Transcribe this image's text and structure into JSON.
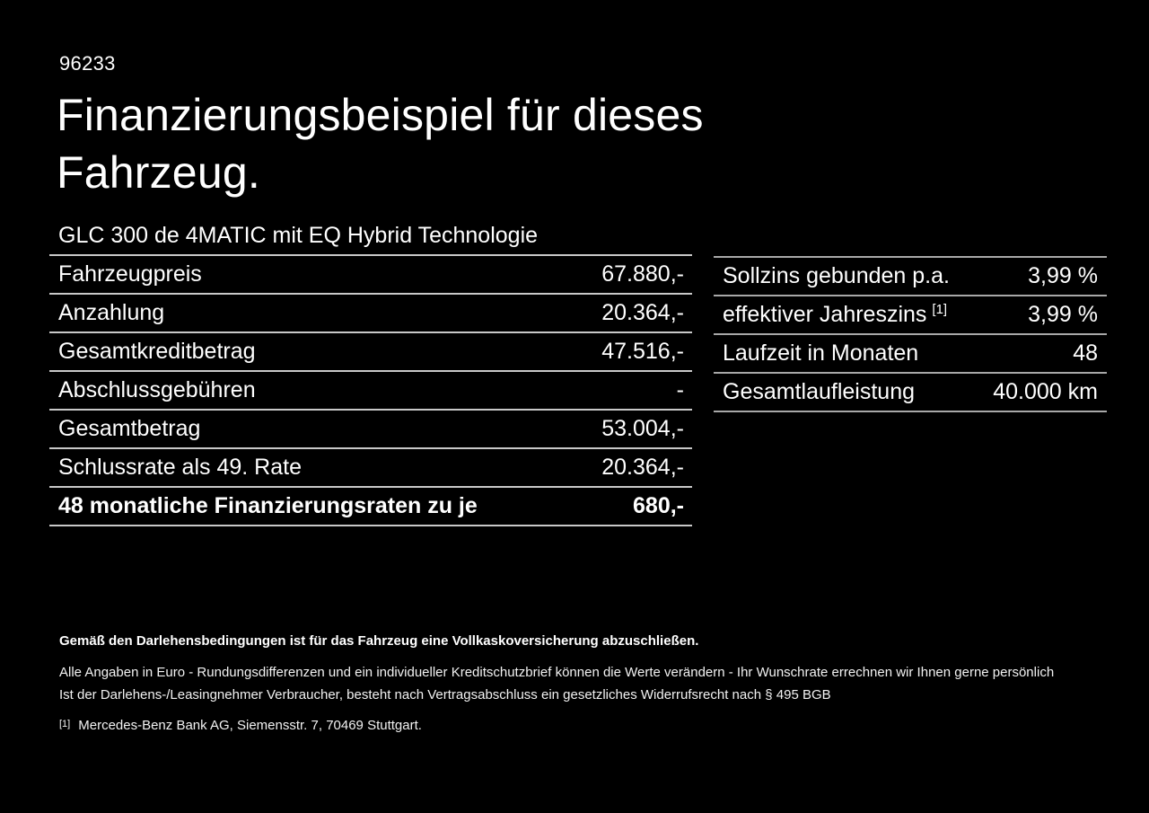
{
  "page": {
    "background": "#000000",
    "text_color": "#ffffff",
    "divider_color_left": "#c8c8c8",
    "divider_color_right": "#a8a8a8"
  },
  "header": {
    "ref_number": "96233",
    "title": "Finanzierungsbeispiel für dieses Fahrzeug."
  },
  "vehicle": {
    "model": "GLC 300 de 4MATIC mit EQ Hybrid Technologie"
  },
  "financing_table": {
    "rows": [
      {
        "label": "Fahrzeugpreis",
        "value": "67.880,-"
      },
      {
        "label": "Anzahlung",
        "value": "20.364,-"
      },
      {
        "label": "Gesamtkreditbetrag",
        "value": "47.516,-"
      },
      {
        "label": "Abschlussgebühren",
        "value": "-"
      },
      {
        "label": "Gesamtbetrag",
        "value": "53.004,-"
      },
      {
        "label": "Schlussrate als 49. Rate",
        "value": "20.364,-"
      },
      {
        "label": "48 monatliche Finanzierungsraten zu je",
        "value": "680,-",
        "bold": true
      }
    ]
  },
  "conditions_table": {
    "rows": [
      {
        "label": "Sollzins gebunden p.a.",
        "value": "3,99 %"
      },
      {
        "label": "effektiver Jahreszins",
        "sup": "[1]",
        "value": "3,99 %"
      },
      {
        "label": "Laufzeit in Monaten",
        "value": "48"
      },
      {
        "label": "Gesamtlaufleistung",
        "value": "40.000 km"
      }
    ]
  },
  "footer": {
    "insurance_note": "Gemäß den Darlehensbedingungen ist für das Fahrzeug eine Vollkaskoversicherung abzuschließen.",
    "disclaimer_line1": "Alle Angaben in Euro - Rundungsdifferenzen und ein individueller Kreditschutzbrief können die Werte verändern - Ihr Wunschrate errechnen wir Ihnen gerne persönlich",
    "disclaimer_line2": "Ist der Darlehens-/Leasingnehmer Verbraucher, besteht nach Vertragsabschluss ein gesetzliches Widerrufsrecht nach § 495 BGB",
    "footnote_marker": "[1]",
    "footnote_text": "Mercedes-Benz Bank AG, Siemensstr. 7, 70469 Stuttgart."
  }
}
